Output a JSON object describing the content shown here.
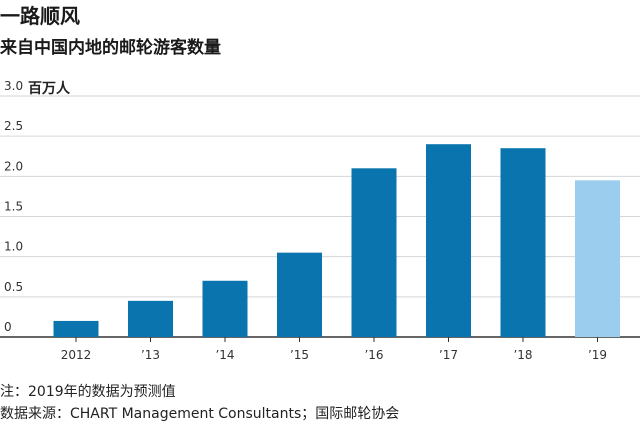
{
  "chart_data": {
    "type": "bar",
    "title": "一路顺风",
    "subtitle": "来自中国内地的邮轮游客数量",
    "unit_label": "百万人",
    "categories": [
      "2012",
      "'13",
      "'14",
      "'15",
      "'16",
      "'17",
      "'18",
      "'19"
    ],
    "values": [
      0.2,
      0.45,
      0.7,
      1.05,
      2.1,
      2.4,
      2.35,
      1.95
    ],
    "projected": [
      false,
      false,
      false,
      false,
      false,
      false,
      false,
      true
    ],
    "ylim": [
      0,
      3.0
    ],
    "yticks": [
      "0",
      "0.5",
      "1.0",
      "1.5",
      "2.0",
      "2.5",
      "3.0"
    ],
    "ytick_values": [
      0,
      0.5,
      1.0,
      1.5,
      2.0,
      2.5,
      3.0
    ],
    "grid": true,
    "colors": {
      "actual": "#0a74ae",
      "projected": "#9bcdee",
      "grid": "#d6d6d6",
      "axis": "#333333"
    }
  },
  "notes": {
    "note": "注：2019年的数据为预测值",
    "source": "数据来源：CHART Management Consultants；国际邮轮协会"
  }
}
